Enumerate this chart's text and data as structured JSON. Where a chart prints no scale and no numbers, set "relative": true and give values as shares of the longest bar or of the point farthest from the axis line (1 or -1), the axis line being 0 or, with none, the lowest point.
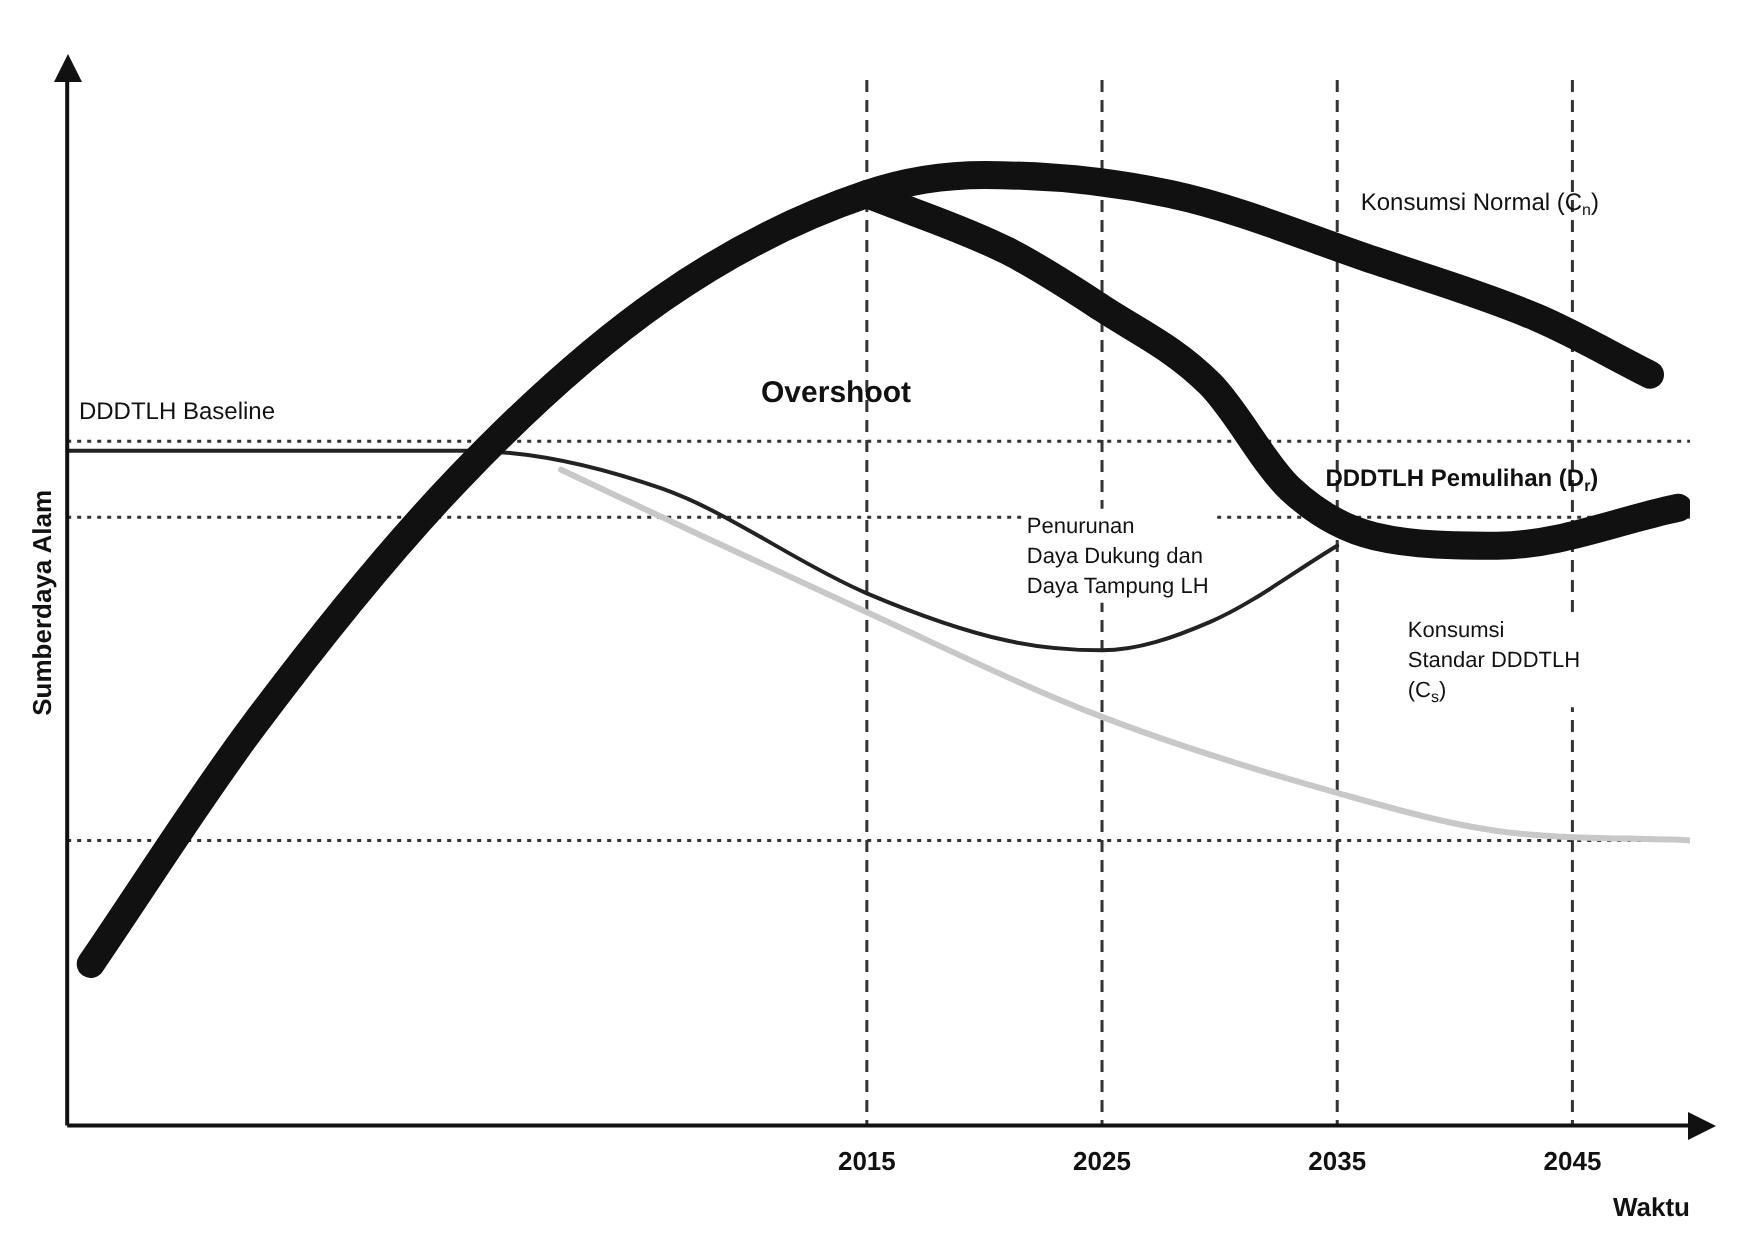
{
  "chart_data": {
    "type": "line",
    "relative": true,
    "ylabel": "Sumberdaya Alam",
    "xlabel": "Waktu",
    "xlim": [
      1981,
      2050
    ],
    "xticks": [
      2015,
      2025,
      2035,
      2045
    ],
    "grid": false,
    "legend": false,
    "marker": "none",
    "line_style": "solid",
    "series": [
      {
        "color": "#111111",
        "x": [
          1982,
          1988.9,
          1997.6,
          2006.3,
          2015,
          2020,
          2027.9,
          2036.6,
          2043.5,
          2048.3
        ],
        "values": [
          0.17,
          0.42,
          0.68,
          0.87,
          0.98,
          1.0,
          0.98,
          0.91,
          0.85,
          0.79
        ]
      },
      {
        "color": "#111111",
        "x": [
          2015,
          2021,
          2025,
          2029.6,
          2033,
          2036.6,
          2041.8,
          2049.5
        ],
        "values": [
          0.98,
          0.92,
          0.86,
          0.78,
          0.67,
          0.62,
          0.61,
          0.65
        ]
      },
      {
        "color": "#222222",
        "x": [
          1981,
          1998,
          2006.3,
          2015,
          2021,
          2025,
          2029.6,
          2035
        ],
        "values": [
          0.71,
          0.71,
          0.67,
          0.56,
          0.51,
          0.5,
          0.53,
          0.61
        ]
      },
      {
        "color": "#c8c8c8",
        "x": [
          2002,
          2006.3,
          2015,
          2025,
          2035,
          2041.8,
          2050
        ],
        "values": [
          0.69,
          0.64,
          0.54,
          0.43,
          0.35,
          0.31,
          0.3
        ]
      }
    ],
    "ref_lines": [
      {
        "axis": "x",
        "value": 2015,
        "line_style": "dashed"
      },
      {
        "axis": "x",
        "value": 2025,
        "line_style": "dashed"
      },
      {
        "axis": "x",
        "value": 2035,
        "line_style": "dashed"
      },
      {
        "axis": "x",
        "value": 2045,
        "line_style": "dashed"
      },
      {
        "axis": "y",
        "value": 0.72,
        "line_style": "dotted"
      },
      {
        "axis": "y",
        "value": 0.64,
        "line_style": "dotted"
      },
      {
        "axis": "y",
        "value": 0.3,
        "line_style": "dotted"
      }
    ],
    "annotations": [
      "DDDTLH Baseline",
      "Overshoot",
      "Penurunan\nDaya Dukung dan\nDaya Tampung LH",
      "Konsumsi Normal (C$_{n}$)",
      "DDDTLH Pemulihan (D$_{r}$)",
      "Konsumsi\nStandar DDDTLH\n(C$_{s}$)"
    ]
  }
}
